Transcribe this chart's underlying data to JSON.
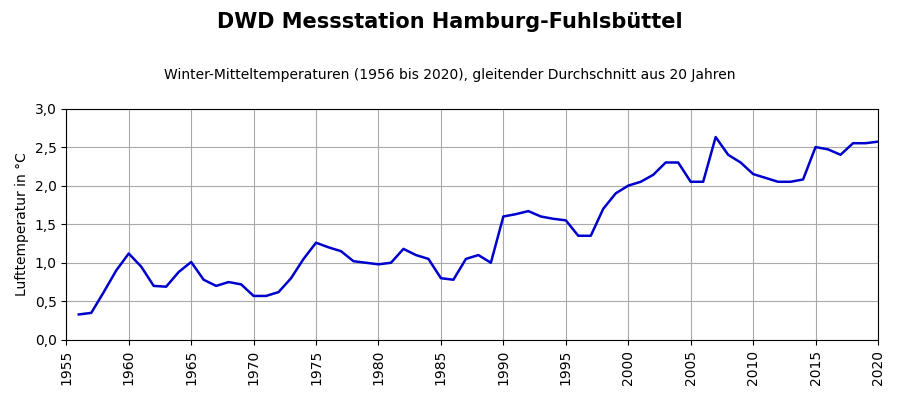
{
  "title": "DWD Messstation Hamburg-Fuhlsbüttel",
  "subtitle": "Winter-Mitteltemperaturen (1956 bis 2020), gleitender Durchschnitt aus 20 Jahren",
  "ylabel": "Lufttemperatur in °C",
  "line_color": "#0000cc",
  "line_width": 1.8,
  "background_color": "#ffffff",
  "grid_color": "#aaaaaa",
  "xlim": [
    1955,
    2020
  ],
  "ylim": [
    0.0,
    3.0
  ],
  "xticks": [
    1955,
    1960,
    1965,
    1970,
    1975,
    1980,
    1985,
    1990,
    1995,
    2000,
    2005,
    2010,
    2015,
    2020
  ],
  "yticks": [
    0.0,
    0.5,
    1.0,
    1.5,
    2.0,
    2.5,
    3.0
  ],
  "x": [
    1956,
    1957,
    1958,
    1959,
    1960,
    1961,
    1962,
    1963,
    1964,
    1965,
    1966,
    1967,
    1968,
    1969,
    1970,
    1971,
    1972,
    1973,
    1974,
    1975,
    1976,
    1977,
    1978,
    1979,
    1980,
    1981,
    1982,
    1983,
    1984,
    1985,
    1986,
    1987,
    1988,
    1989,
    1990,
    1991,
    1992,
    1993,
    1994,
    1995,
    1996,
    1997,
    1998,
    1999,
    2000,
    2001,
    2002,
    2003,
    2004,
    2005,
    2006,
    2007,
    2008,
    2009,
    2010,
    2011,
    2012,
    2013,
    2014,
    2015,
    2016,
    2017,
    2018,
    2019,
    2020
  ],
  "y": [
    0.33,
    0.35,
    0.62,
    0.9,
    1.12,
    0.95,
    0.7,
    0.69,
    0.88,
    1.01,
    0.78,
    0.7,
    0.75,
    0.72,
    0.57,
    0.57,
    0.62,
    0.8,
    1.05,
    1.26,
    1.2,
    1.15,
    1.02,
    1.0,
    0.98,
    1.0,
    1.18,
    1.1,
    1.05,
    0.8,
    0.78,
    1.05,
    1.1,
    1.0,
    1.6,
    1.63,
    1.67,
    1.6,
    1.57,
    1.55,
    1.35,
    1.35,
    1.7,
    1.9,
    2.0,
    2.05,
    2.14,
    2.3,
    2.3,
    2.05,
    2.05,
    2.63,
    2.4,
    2.3,
    2.15,
    2.1,
    2.05,
    2.05,
    2.08,
    2.5,
    2.47,
    2.4,
    2.55,
    2.55,
    2.57
  ],
  "title_fontsize": 15,
  "subtitle_fontsize": 10,
  "ylabel_fontsize": 10,
  "tick_fontsize": 10
}
